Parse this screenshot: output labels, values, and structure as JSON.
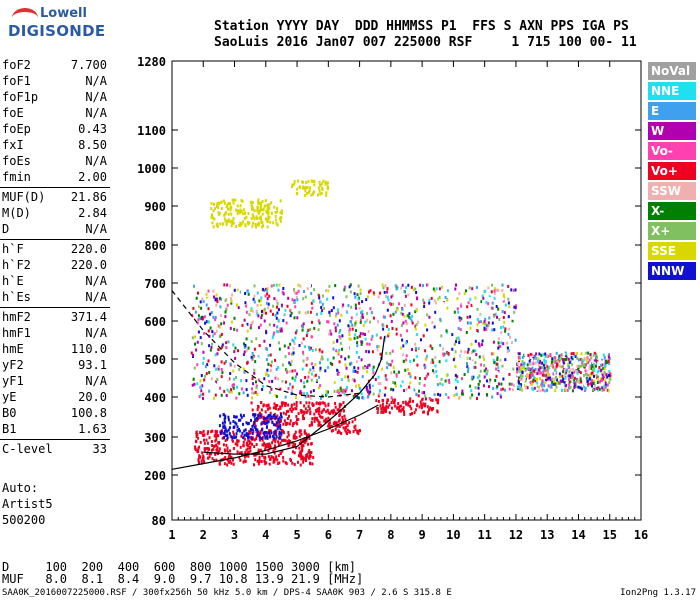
{
  "logo": {
    "line1": "Lowell",
    "line2": "DIGISONDE"
  },
  "header": {
    "line1": "Station YYYY DAY  DDD HHMMSS P1  FFS S AXN PPS IGA PS",
    "line2": "SaoLuis 2016 Jan07 007 225000 RSF     1 715 100 00- 11"
  },
  "params": [
    {
      "name": "foF2",
      "value": "7.700"
    },
    {
      "name": "foF1",
      "value": "N/A"
    },
    {
      "name": "foF1p",
      "value": "N/A"
    },
    {
      "name": "foE",
      "value": "N/A"
    },
    {
      "name": "foEp",
      "value": "0.43"
    },
    {
      "name": "fxI",
      "value": "8.50"
    },
    {
      "name": "foEs",
      "value": "N/A"
    },
    {
      "name": "fmin",
      "value": "2.00"
    },
    {
      "name": "MUF(D)",
      "value": "21.86"
    },
    {
      "name": "M(D)",
      "value": "2.84"
    },
    {
      "name": "D",
      "value": "N/A"
    },
    {
      "name": "h`F",
      "value": "220.0"
    },
    {
      "name": "h`F2",
      "value": "220.0"
    },
    {
      "name": "h`E",
      "value": "N/A"
    },
    {
      "name": "h`Es",
      "value": "N/A"
    },
    {
      "name": "hmF2",
      "value": "371.4"
    },
    {
      "name": "hmF1",
      "value": "N/A"
    },
    {
      "name": "hmE",
      "value": "110.0"
    },
    {
      "name": "yF2",
      "value": "93.1"
    },
    {
      "name": "yF1",
      "value": "N/A"
    },
    {
      "name": "yE",
      "value": "20.0"
    },
    {
      "name": "B0",
      "value": "100.8"
    },
    {
      "name": "B1",
      "value": "1.63"
    },
    {
      "name": "C-level",
      "value": "33"
    }
  ],
  "auto": {
    "line1": "Auto:",
    "line2": "Artist5",
    "line3": "500200"
  },
  "legend": [
    {
      "label": "NoVal",
      "color": "#a0a0a0"
    },
    {
      "label": "NNE",
      "color": "#20e0f0"
    },
    {
      "label": "E",
      "color": "#40a0f0"
    },
    {
      "label": "W",
      "color": "#b000b0"
    },
    {
      "label": "Vo-",
      "color": "#ff40b0"
    },
    {
      "label": "Vo+",
      "color": "#f00020"
    },
    {
      "label": "SSW",
      "color": "#f0b0b0"
    },
    {
      "label": "X-",
      "color": "#008000"
    },
    {
      "label": "X+",
      "color": "#80c060"
    },
    {
      "label": "SSE",
      "color": "#d8d800"
    },
    {
      "label": "NNW",
      "color": "#1010d0"
    }
  ],
  "mufd": {
    "line1": "D     100  200  400  600  800 1000 1500 3000 [km]",
    "line2": "MUF   8.0  8.1  8.4  9.0  9.7 10.8 13.9 21.9 [MHz]"
  },
  "footer": {
    "left": "SAA0K_2016007225000.RSF / 300fx256h 50 kHz 5.0 km / DPS-4 SAA0K 903 / 2.6 S 315.8 E",
    "right": "Ion2Png 1.3.17"
  },
  "chart_data": {
    "type": "scatter",
    "xlim": [
      1,
      16
    ],
    "ylim": [
      80,
      1280
    ],
    "x_ticks": [
      1,
      2,
      3,
      4,
      5,
      6,
      7,
      8,
      9,
      10,
      11,
      12,
      13,
      14,
      15,
      16
    ],
    "y_ticks": [
      80,
      200,
      300,
      400,
      500,
      600,
      700,
      800,
      900,
      1000,
      1100,
      1280
    ],
    "y_scale": "linear-compressed",
    "grid": false,
    "legend_position": "right",
    "clusters": [
      {
        "color": "SSE",
        "x": [
          2.2,
          4.5
        ],
        "y": [
          850,
          920
        ]
      },
      {
        "color": "SSE",
        "x": [
          4.8,
          6.0
        ],
        "y": [
          930,
          970
        ]
      },
      {
        "color": "Vo+",
        "x": [
          1.7,
          5.5
        ],
        "y": [
          230,
          320
        ]
      },
      {
        "color": "Vo+",
        "x": [
          3.5,
          6.5
        ],
        "y": [
          330,
          390
        ]
      },
      {
        "color": "Vo+",
        "x": [
          6.0,
          7.0
        ],
        "y": [
          310,
          350
        ]
      },
      {
        "color": "Vo+",
        "x": [
          7.5,
          9.5
        ],
        "y": [
          360,
          400
        ]
      },
      {
        "color": "NNW",
        "x": [
          2.5,
          4.5
        ],
        "y": [
          300,
          360
        ]
      },
      {
        "color": "mixed",
        "x": [
          1.6,
          12.0
        ],
        "y": [
          400,
          700
        ]
      },
      {
        "color": "mixed",
        "x": [
          12.0,
          15.0
        ],
        "y": [
          420,
          520
        ]
      }
    ],
    "profile_curve": {
      "x": [
        1.0,
        2.0,
        3.0,
        4.0,
        5.0,
        6.0,
        7.0,
        7.6
      ],
      "y": [
        215,
        230,
        245,
        265,
        290,
        320,
        355,
        380
      ]
    },
    "trace_curve": {
      "x": [
        2.0,
        3.0,
        4.0,
        5.0,
        5.7,
        6.3,
        7.0,
        7.5,
        7.7,
        7.8
      ],
      "y": [
        260,
        255,
        255,
        275,
        320,
        360,
        410,
        460,
        500,
        560
      ]
    },
    "dashed_curve": {
      "x": [
        1.0,
        2.0,
        3.0,
        4.0,
        5.0,
        6.0,
        7.0
      ],
      "y": [
        680,
        575,
        490,
        430,
        405,
        400,
        410
      ]
    }
  }
}
